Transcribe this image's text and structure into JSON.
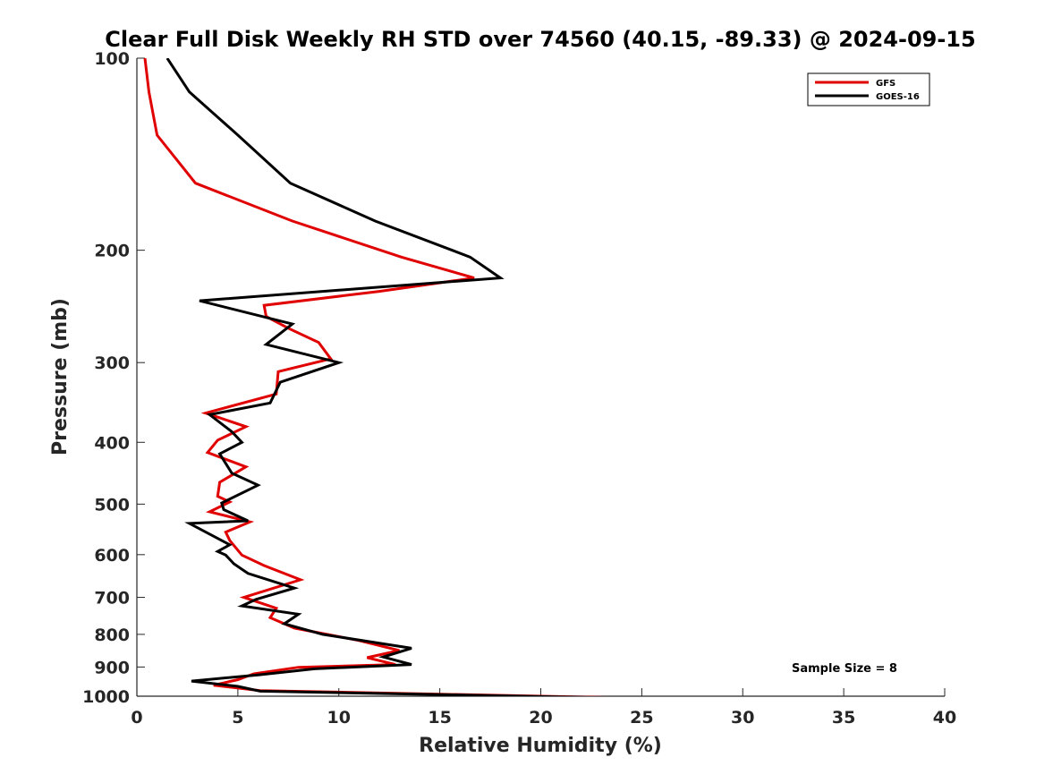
{
  "chart_data": {
    "type": "line",
    "title": "Clear Full Disk Weekly RH STD over 74560 (40.15, -89.33) @ 2024-09-15",
    "xlabel": "Relative Humidity (%)",
    "ylabel": "Pressure (mb)",
    "xlim": [
      0,
      40
    ],
    "ylim": [
      100,
      1000
    ],
    "yscale": "log",
    "y_reversed": true,
    "xticks": [
      0,
      5,
      10,
      15,
      20,
      25,
      30,
      35,
      40
    ],
    "yticks": [
      100,
      200,
      300,
      400,
      500,
      600,
      700,
      800,
      900,
      1000
    ],
    "grid": false,
    "legend_position": "top-right",
    "annotation": "Sample Size = 8",
    "series": [
      {
        "name": "GFS",
        "color": "#e00000",
        "x": [
          0.4,
          0.6,
          1.0,
          2.9,
          7.7,
          13.1,
          16.7,
          12.0,
          6.3,
          6.4,
          7.5,
          9.0,
          9.6,
          7.0,
          6.9,
          3.4,
          5.4,
          4.0,
          3.5,
          5.4,
          4.1,
          4.0,
          4.6,
          3.6,
          5.6,
          4.4,
          4.6,
          5.2,
          6.3,
          8.1,
          5.3,
          6.9,
          6.6,
          7.8,
          11.0,
          13.0,
          11.4,
          12.8,
          8.0,
          5.8,
          5.0,
          3.8,
          6.1,
          26.9
        ],
        "y": [
          100,
          113,
          132,
          157,
          180,
          205,
          221,
          232,
          244,
          254,
          265,
          279,
          296,
          310,
          336,
          360,
          378,
          397,
          415,
          437,
          462,
          486,
          496,
          514,
          533,
          553,
          570,
          601,
          624,
          657,
          700,
          728,
          753,
          782,
          818,
          848,
          870,
          892,
          901,
          922,
          942,
          961,
          980,
          1010
        ]
      },
      {
        "name": "GOES-16",
        "color": "#000000",
        "x": [
          1.5,
          2.6,
          5.0,
          7.6,
          11.8,
          16.5,
          18.0,
          3.1,
          7.7,
          6.4,
          10.0,
          7.1,
          6.6,
          3.6,
          4.7,
          5.2,
          4.1,
          4.7,
          6.0,
          4.2,
          4.3,
          5.5,
          2.6,
          4.6,
          4.0,
          4.4,
          4.8,
          5.5,
          7.8,
          5.9,
          5.2,
          8.0,
          7.3,
          9.2,
          13.6,
          12.2,
          13.6,
          8.8,
          6.0,
          2.7,
          5.0,
          6.1,
          26.4
        ],
        "y": [
          100,
          113,
          132,
          157,
          180,
          205,
          221,
          240,
          261,
          281,
          300,
          322,
          347,
          362,
          385,
          400,
          417,
          447,
          467,
          498,
          510,
          531,
          536,
          579,
          593,
          601,
          620,
          642,
          677,
          705,
          722,
          744,
          770,
          800,
          841,
          868,
          892,
          906,
          926,
          947,
          965,
          982,
          1010
        ]
      }
    ]
  }
}
